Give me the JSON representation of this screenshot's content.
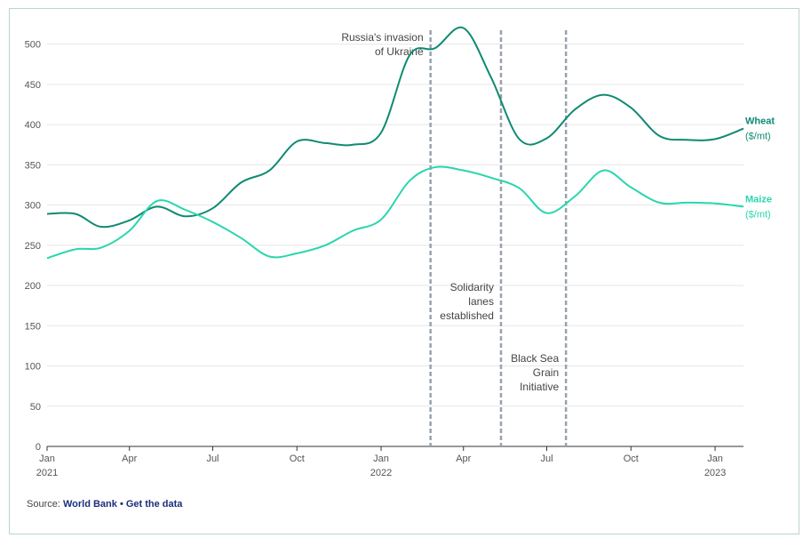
{
  "chart_data": {
    "type": "line",
    "x": [
      "2021-01",
      "2021-02",
      "2021-03",
      "2021-04",
      "2021-05",
      "2021-06",
      "2021-07",
      "2021-08",
      "2021-09",
      "2021-10",
      "2021-11",
      "2021-12",
      "2022-01",
      "2022-02",
      "2022-03",
      "2022-04",
      "2022-05",
      "2022-06",
      "2022-07",
      "2022-08",
      "2022-09",
      "2022-10",
      "2022-11",
      "2022-12",
      "2023-01",
      "2023-02"
    ],
    "series": [
      {
        "name": "Wheat",
        "unit": "($/mt)",
        "color": "#0f8a72",
        "values": [
          289,
          289,
          273,
          281,
          298,
          286,
          296,
          328,
          343,
          379,
          377,
          375,
          390,
          486,
          495,
          520,
          459,
          382,
          383,
          419,
          437,
          421,
          386,
          381,
          382,
          395
        ]
      },
      {
        "name": "Maize",
        "unit": "($/mt)",
        "color": "#29d6ae",
        "values": [
          234,
          245,
          247,
          268,
          305,
          294,
          279,
          259,
          236,
          240,
          250,
          268,
          282,
          330,
          347,
          343,
          334,
          321,
          290,
          311,
          343,
          322,
          303,
          303,
          302,
          298
        ]
      }
    ],
    "y_ticks": [
      "0",
      "50",
      "100",
      "150",
      "200",
      "250",
      "300",
      "350",
      "400",
      "450",
      "500"
    ],
    "x_ticks": [
      {
        "x": "2021-01",
        "label": "Jan",
        "sub": "2021"
      },
      {
        "x": "2021-04",
        "label": "Apr",
        "sub": ""
      },
      {
        "x": "2021-07",
        "label": "Jul",
        "sub": ""
      },
      {
        "x": "2021-10",
        "label": "Oct",
        "sub": ""
      },
      {
        "x": "2022-01",
        "label": "Jan",
        "sub": "2022"
      },
      {
        "x": "2022-04",
        "label": "Apr",
        "sub": ""
      },
      {
        "x": "2022-07",
        "label": "Jul",
        "sub": ""
      },
      {
        "x": "2022-10",
        "label": "Oct",
        "sub": ""
      },
      {
        "x": "2023-01",
        "label": "Jan",
        "sub": "2023"
      }
    ],
    "ylim": [
      0,
      525
    ],
    "annotations": [
      {
        "x": "2022-02-24",
        "lines": [
          "Russia's invasion",
          "of Ukraine"
        ],
        "align": "top-left"
      },
      {
        "x": "2022-05-12",
        "lines": [
          "Solidarity",
          "lanes",
          "established"
        ],
        "align": "middle-left"
      },
      {
        "x": "2022-07-22",
        "lines": [
          "Black Sea",
          "Grain",
          "Initiative"
        ],
        "align": "lower-left"
      }
    ],
    "grid": true,
    "legend": "right-end labels"
  },
  "source": {
    "prefix": "Source: ",
    "org": "World Bank",
    "separator": " • ",
    "link": "Get the data"
  }
}
